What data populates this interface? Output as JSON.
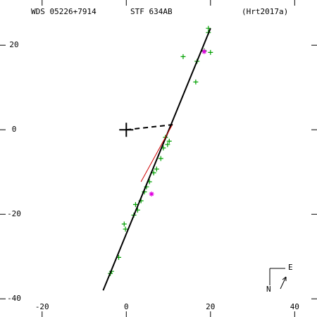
{
  "chart_data": {
    "type": "scatter",
    "title": "WDS 05226+7914",
    "annotations": [
      "STF 634AB",
      "(Hrt2017a)"
    ],
    "compass": [
      "E",
      "N"
    ],
    "xlim": [
      -30,
      45.3
    ],
    "ylim": [
      -44.3,
      30.7
    ],
    "xticks": [
      -20,
      0,
      20,
      40
    ],
    "yticks": [
      -40,
      -20,
      0,
      20
    ],
    "series": [
      {
        "color": "#00a000",
        "marker": "plus",
        "x": [
          19.5,
          19.5,
          20,
          13.5,
          16.8,
          16.5,
          18.5,
          10.2,
          9.8,
          9.3,
          8.8,
          8.2,
          7.2,
          6.5,
          5.5,
          4.8,
          4.3,
          3.5,
          2.2,
          2.7,
          1.8,
          -0.5,
          -0.2,
          -1.8,
          -3.5,
          -3.8
        ],
        "values": [
          24,
          23,
          18.3,
          17.3,
          16.2,
          11.3,
          18.7,
          -2.7,
          -3.5,
          -1.8,
          -4.3,
          -6.8,
          -9.3,
          -10.2,
          -12.3,
          -13.5,
          -14.7,
          -16.8,
          -17.7,
          -19,
          -20.2,
          -22.3,
          -23.5,
          -30.2,
          -33.5,
          -34
        ]
      },
      {
        "color": "#e000e0",
        "marker": "star",
        "x": [
          6,
          18.5
        ],
        "values": [
          -15.2,
          18.5
        ]
      },
      {
        "color": "#000000",
        "marker": "line",
        "width": 2,
        "x": [
          -5.5,
          20
        ],
        "values": [
          -38,
          24
        ]
      },
      {
        "color": "#d00000",
        "marker": "line",
        "width": 1,
        "x": [
          3.5,
          11
        ],
        "values": [
          -12.3,
          1.3
        ]
      },
      {
        "color": "#000000",
        "marker": "dash",
        "width": 2,
        "x": [
          0,
          11
        ],
        "values": [
          0,
          1.2
        ]
      }
    ]
  }
}
